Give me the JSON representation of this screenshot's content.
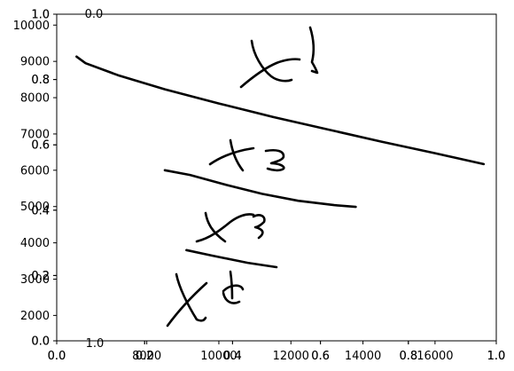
{
  "chart_data": {
    "type": "line",
    "title": "",
    "xlabel": "",
    "ylabel": "",
    "grid": false,
    "legend": "none",
    "axes": {
      "primary_x": {
        "range": [
          0.0,
          1.0
        ],
        "ticks": [
          0.0,
          0.2,
          0.4,
          0.6,
          0.8,
          1.0
        ],
        "tick_labels": [
          "0.0",
          "0.2",
          "0.4",
          "0.6",
          "0.8",
          "1.0"
        ]
      },
      "primary_y": {
        "range": [
          0.0,
          1.0
        ],
        "ticks": [
          0.0,
          0.2,
          0.4,
          0.6,
          0.8,
          1.0
        ],
        "tick_labels": [
          "0.0",
          "0.2",
          "0.4",
          "0.6",
          "0.8",
          "1.0"
        ]
      },
      "overlay_x_1": {
        "range": [
          0.0,
          1.0
        ],
        "ticks": [
          0.0,
          0.2,
          0.4,
          0.6,
          0.8,
          1.0
        ],
        "tick_labels": [
          "0.0",
          "0.2",
          "0.4",
          "0.6",
          "0.8",
          "1.0"
        ]
      },
      "overlay_y_1": {
        "range": [
          0.0,
          1.0
        ],
        "ticks": [
          0.0,
          0.2,
          0.4,
          0.6,
          0.8,
          1.0
        ],
        "tick_labels": [
          "0.0",
          "0.2",
          "0.4",
          "0.6",
          "0.8",
          "1.0"
        ]
      },
      "overlay_x_2": {
        "range": [
          5500,
          17700
        ],
        "ticks": [
          8000,
          10000,
          12000,
          14000,
          16000
        ],
        "tick_labels": [
          "8000",
          "10000",
          "12000",
          "14000",
          "16000"
        ]
      },
      "overlay_y_2": {
        "range": [
          1300,
          10300
        ],
        "ticks": [
          2000,
          3000,
          4000,
          5000,
          6000,
          7000,
          8000,
          9000,
          10000
        ],
        "tick_labels": [
          "2000",
          "3000",
          "4000",
          "5000",
          "6000",
          "7000",
          "8000",
          "9000",
          "10000"
        ]
      },
      "stray_labels": [
        "0.0",
        "1.0"
      ]
    },
    "series": [
      {
        "x": [
          6050,
          6300,
          7200,
          8500,
          10000,
          11500,
          13000,
          14500,
          16000,
          17350
        ],
        "values": [
          9130,
          8950,
          8620,
          8230,
          7840,
          7470,
          7130,
          6790,
          6470,
          6170
        ]
      },
      {
        "x": [
          8500,
          9200,
          10200,
          11200,
          12200,
          13200,
          13800
        ],
        "values": [
          6000,
          5870,
          5600,
          5350,
          5160,
          5040,
          4990
        ]
      },
      {
        "x": [
          9100,
          9800,
          10800,
          11600
        ],
        "values": [
          3800,
          3650,
          3450,
          3330
        ]
      }
    ],
    "annotations": {
      "handwriting": [
        {
          "text": "x1"
        },
        {
          "text": "x3"
        },
        {
          "text": "x3"
        },
        {
          "text": "x5"
        }
      ]
    }
  }
}
